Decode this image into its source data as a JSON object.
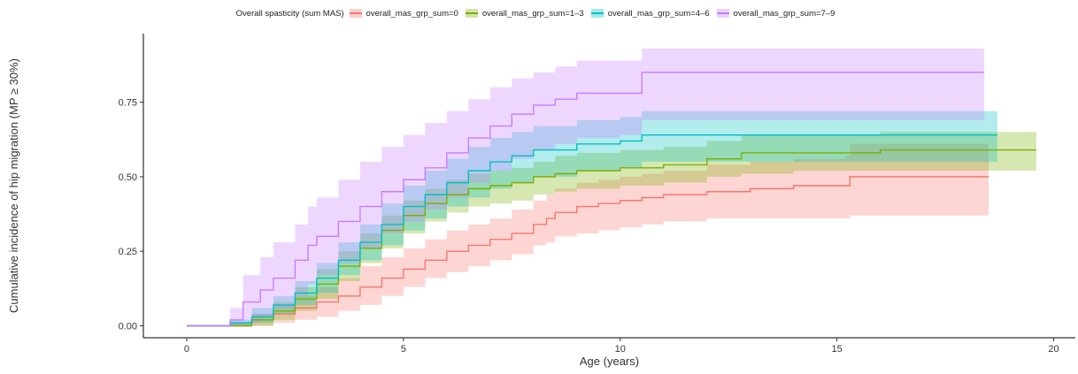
{
  "legend": {
    "title": "Overall spasticity (sum MAS)",
    "position": "top"
  },
  "chart_data": {
    "type": "line",
    "xlabel": "Age (years)",
    "ylabel": "Cumulative incidence of hip migration (MP ≥ 30%)",
    "xlim": [
      -1,
      20.5
    ],
    "ylim": [
      -0.04,
      0.98
    ],
    "x_ticks": [
      0,
      5,
      10,
      15,
      20
    ],
    "y_ticks": [
      0.0,
      0.25,
      0.5,
      0.75
    ],
    "x_tick_labels": [
      "0",
      "5",
      "10",
      "15",
      "20"
    ],
    "y_tick_labels": [
      "0.00",
      "0.25",
      "0.50",
      "0.75"
    ],
    "grid": false,
    "series": [
      {
        "name": "overall_mas_grp_sum=0",
        "color": "#F8766D",
        "x": [
          0,
          1.0,
          1.5,
          2.0,
          2.5,
          3.0,
          3.5,
          4.0,
          4.5,
          5.0,
          5.5,
          6.0,
          6.5,
          7.0,
          7.5,
          8.0,
          8.3,
          8.5,
          9.0,
          9.5,
          10.0,
          10.5,
          11.0,
          12.0,
          13.0,
          14.0,
          15.2,
          15.3,
          18.5
        ],
        "y": [
          0,
          0.0,
          0.02,
          0.04,
          0.06,
          0.08,
          0.1,
          0.13,
          0.16,
          0.19,
          0.22,
          0.25,
          0.27,
          0.29,
          0.31,
          0.34,
          0.36,
          0.38,
          0.4,
          0.41,
          0.42,
          0.43,
          0.44,
          0.45,
          0.46,
          0.47,
          0.47,
          0.5,
          0.5
        ],
        "lower": [
          0,
          0.0,
          0.0,
          0.01,
          0.02,
          0.03,
          0.05,
          0.07,
          0.1,
          0.13,
          0.16,
          0.18,
          0.2,
          0.22,
          0.24,
          0.27,
          0.28,
          0.3,
          0.31,
          0.32,
          0.33,
          0.34,
          0.35,
          0.36,
          0.36,
          0.36,
          0.36,
          0.37,
          0.37
        ],
        "upper": [
          0,
          0.01,
          0.04,
          0.07,
          0.1,
          0.13,
          0.16,
          0.2,
          0.23,
          0.26,
          0.29,
          0.32,
          0.34,
          0.36,
          0.39,
          0.42,
          0.44,
          0.46,
          0.48,
          0.49,
          0.5,
          0.51,
          0.52,
          0.54,
          0.55,
          0.56,
          0.57,
          0.61,
          0.61
        ]
      },
      {
        "name": "overall_mas_grp_sum=1–3",
        "color": "#7CAE00",
        "x": [
          0,
          1.0,
          1.5,
          2.0,
          2.5,
          3.0,
          3.5,
          4.0,
          4.5,
          5.0,
          5.5,
          6.0,
          6.5,
          7.0,
          7.5,
          8.0,
          8.5,
          9.0,
          10.0,
          11.0,
          12.0,
          12.8,
          14.0,
          16.0,
          18.0,
          19.6
        ],
        "y": [
          0,
          0.0,
          0.02,
          0.05,
          0.09,
          0.14,
          0.2,
          0.26,
          0.32,
          0.37,
          0.41,
          0.44,
          0.46,
          0.47,
          0.48,
          0.5,
          0.51,
          0.52,
          0.53,
          0.54,
          0.56,
          0.58,
          0.58,
          0.59,
          0.59,
          0.59
        ],
        "lower": [
          0,
          0.0,
          0.0,
          0.02,
          0.05,
          0.09,
          0.15,
          0.21,
          0.26,
          0.31,
          0.35,
          0.38,
          0.4,
          0.41,
          0.42,
          0.44,
          0.45,
          0.46,
          0.47,
          0.48,
          0.5,
          0.51,
          0.52,
          0.52,
          0.52,
          0.52
        ],
        "upper": [
          0,
          0.01,
          0.04,
          0.08,
          0.13,
          0.19,
          0.25,
          0.31,
          0.37,
          0.42,
          0.46,
          0.49,
          0.51,
          0.52,
          0.53,
          0.55,
          0.57,
          0.58,
          0.59,
          0.6,
          0.62,
          0.64,
          0.64,
          0.65,
          0.65,
          0.65
        ]
      },
      {
        "name": "overall_mas_grp_sum=4–6",
        "color": "#00BFC4",
        "x": [
          0,
          1.0,
          1.5,
          2.0,
          2.5,
          3.0,
          3.5,
          4.0,
          4.5,
          5.0,
          5.5,
          6.0,
          6.5,
          7.0,
          7.5,
          8.0,
          9.0,
          10.0,
          10.5,
          12.0,
          14.0,
          16.0,
          18.7
        ],
        "y": [
          0,
          0.01,
          0.03,
          0.07,
          0.11,
          0.16,
          0.22,
          0.28,
          0.34,
          0.4,
          0.44,
          0.48,
          0.52,
          0.55,
          0.57,
          0.59,
          0.61,
          0.62,
          0.64,
          0.64,
          0.64,
          0.64,
          0.64
        ],
        "lower": [
          0,
          0.0,
          0.01,
          0.04,
          0.07,
          0.11,
          0.17,
          0.22,
          0.27,
          0.32,
          0.36,
          0.4,
          0.43,
          0.46,
          0.48,
          0.5,
          0.52,
          0.53,
          0.55,
          0.55,
          0.55,
          0.55,
          0.55
        ],
        "upper": [
          0,
          0.02,
          0.06,
          0.1,
          0.15,
          0.21,
          0.28,
          0.34,
          0.41,
          0.47,
          0.52,
          0.56,
          0.6,
          0.63,
          0.65,
          0.67,
          0.69,
          0.7,
          0.72,
          0.72,
          0.72,
          0.72,
          0.72
        ]
      },
      {
        "name": "overall_mas_grp_sum=7–9",
        "color": "#C77CFF",
        "x": [
          0,
          1.0,
          1.3,
          1.7,
          2.0,
          2.5,
          2.8,
          3.0,
          3.5,
          4.0,
          4.5,
          5.0,
          5.5,
          6.0,
          6.5,
          7.0,
          7.5,
          8.0,
          8.5,
          9.0,
          10.0,
          10.5,
          12.0,
          14.0,
          16.0,
          18.4
        ],
        "y": [
          0,
          0.02,
          0.08,
          0.12,
          0.16,
          0.22,
          0.27,
          0.3,
          0.35,
          0.4,
          0.45,
          0.49,
          0.53,
          0.58,
          0.63,
          0.67,
          0.71,
          0.74,
          0.76,
          0.78,
          0.78,
          0.85,
          0.85,
          0.85,
          0.85,
          0.85
        ],
        "lower": [
          0,
          0.0,
          0.01,
          0.03,
          0.06,
          0.1,
          0.14,
          0.17,
          0.21,
          0.26,
          0.31,
          0.35,
          0.39,
          0.43,
          0.48,
          0.52,
          0.56,
          0.59,
          0.61,
          0.63,
          0.64,
          0.69,
          0.69,
          0.69,
          0.69,
          0.69
        ],
        "upper": [
          0,
          0.06,
          0.17,
          0.23,
          0.28,
          0.34,
          0.4,
          0.43,
          0.49,
          0.55,
          0.6,
          0.64,
          0.68,
          0.72,
          0.76,
          0.8,
          0.83,
          0.85,
          0.87,
          0.89,
          0.89,
          0.93,
          0.93,
          0.93,
          0.93,
          0.93
        ]
      }
    ]
  }
}
